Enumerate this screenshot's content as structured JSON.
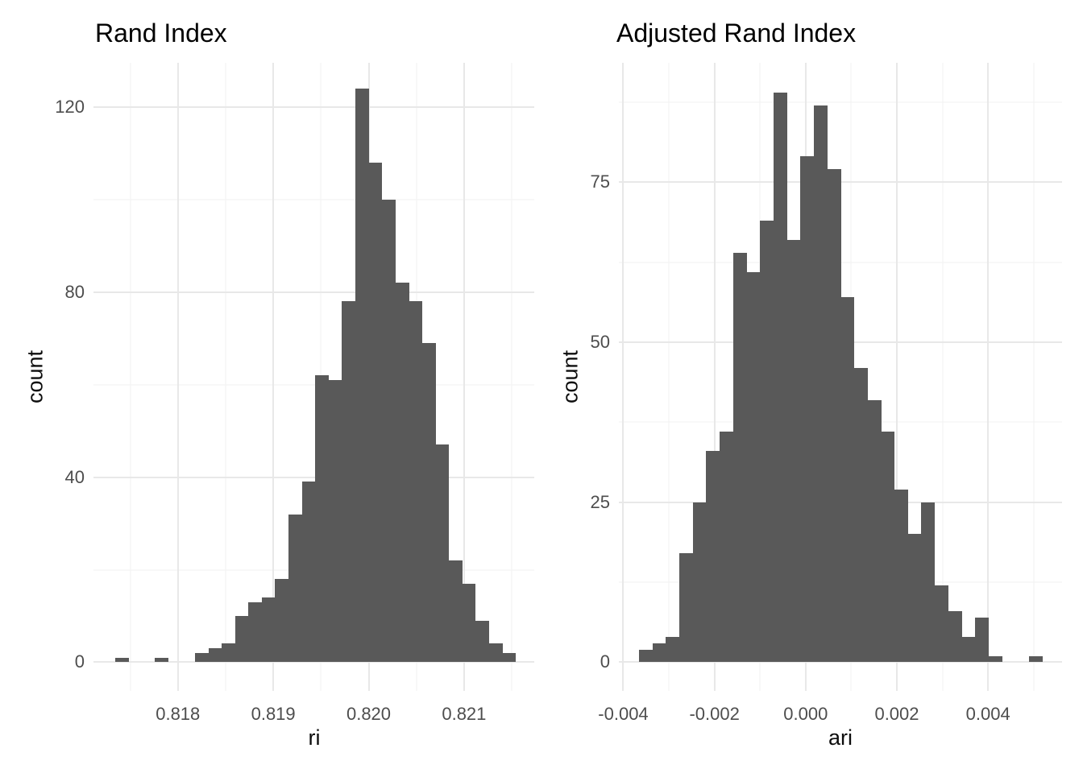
{
  "chart_data": [
    {
      "type": "bar",
      "subtype": "histogram",
      "title": "Rand Index",
      "xlabel": "ri",
      "ylabel": "count",
      "bar_color": "#595959",
      "grid_major_color": "#e8e8e8",
      "grid_minor_color": "#f2f2f2",
      "axis_text_color": "#4d4d4d",
      "bin_start": 0.81734,
      "bin_width": 0.00014,
      "counts": [
        1,
        0,
        0,
        1,
        0,
        0,
        2,
        3,
        4,
        10,
        13,
        14,
        18,
        32,
        39,
        62,
        61,
        78,
        124,
        108,
        100,
        82,
        78,
        69,
        47,
        22,
        17,
        9,
        4,
        2
      ],
      "total_count": 1000,
      "xlim": [
        0.817115,
        0.821736
      ],
      "ylim": [
        -6.2,
        129.6
      ],
      "x_major_ticks": [
        0.818,
        0.819,
        0.82,
        0.821
      ],
      "x_major_labels": [
        "0.818",
        "0.819",
        "0.820",
        "0.821"
      ],
      "x_minor_ticks": [
        0.8175,
        0.8185,
        0.8195,
        0.8205,
        0.8215
      ],
      "y_major_ticks": [
        0,
        40,
        80,
        120
      ],
      "y_major_labels": [
        "0",
        "40",
        "80",
        "120"
      ],
      "y_minor_ticks": [
        20,
        60,
        100
      ],
      "grid": true,
      "legend": "none"
    },
    {
      "type": "bar",
      "subtype": "histogram",
      "title": "Adjusted Rand Index",
      "xlabel": "ari",
      "ylabel": "count",
      "bar_color": "#595959",
      "grid_major_color": "#e8e8e8",
      "grid_minor_color": "#f2f2f2",
      "axis_text_color": "#4d4d4d",
      "bin_start": -0.003658,
      "bin_width": 0.000295,
      "counts": [
        2,
        3,
        4,
        17,
        25,
        33,
        36,
        64,
        61,
        69,
        89,
        66,
        79,
        87,
        77,
        57,
        46,
        41,
        36,
        27,
        20,
        25,
        12,
        8,
        4,
        7,
        1,
        0,
        0,
        1
      ],
      "total_count": 997,
      "xlim": [
        -0.004097,
        0.005623
      ],
      "ylim": [
        -4.47,
        93.65
      ],
      "x_major_ticks": [
        -0.004,
        -0.002,
        0.0,
        0.002,
        0.004
      ],
      "x_major_labels": [
        "-0.004",
        "-0.002",
        "0.000",
        "0.002",
        "0.004"
      ],
      "x_minor_ticks": [
        -0.003,
        -0.001,
        0.001,
        0.003,
        0.005
      ],
      "y_major_ticks": [
        0,
        25,
        50,
        75
      ],
      "y_major_labels": [
        "0",
        "25",
        "50",
        "75"
      ],
      "y_minor_ticks": [
        12.5,
        37.5,
        62.5,
        87.5
      ],
      "grid": true,
      "legend": "none"
    }
  ]
}
